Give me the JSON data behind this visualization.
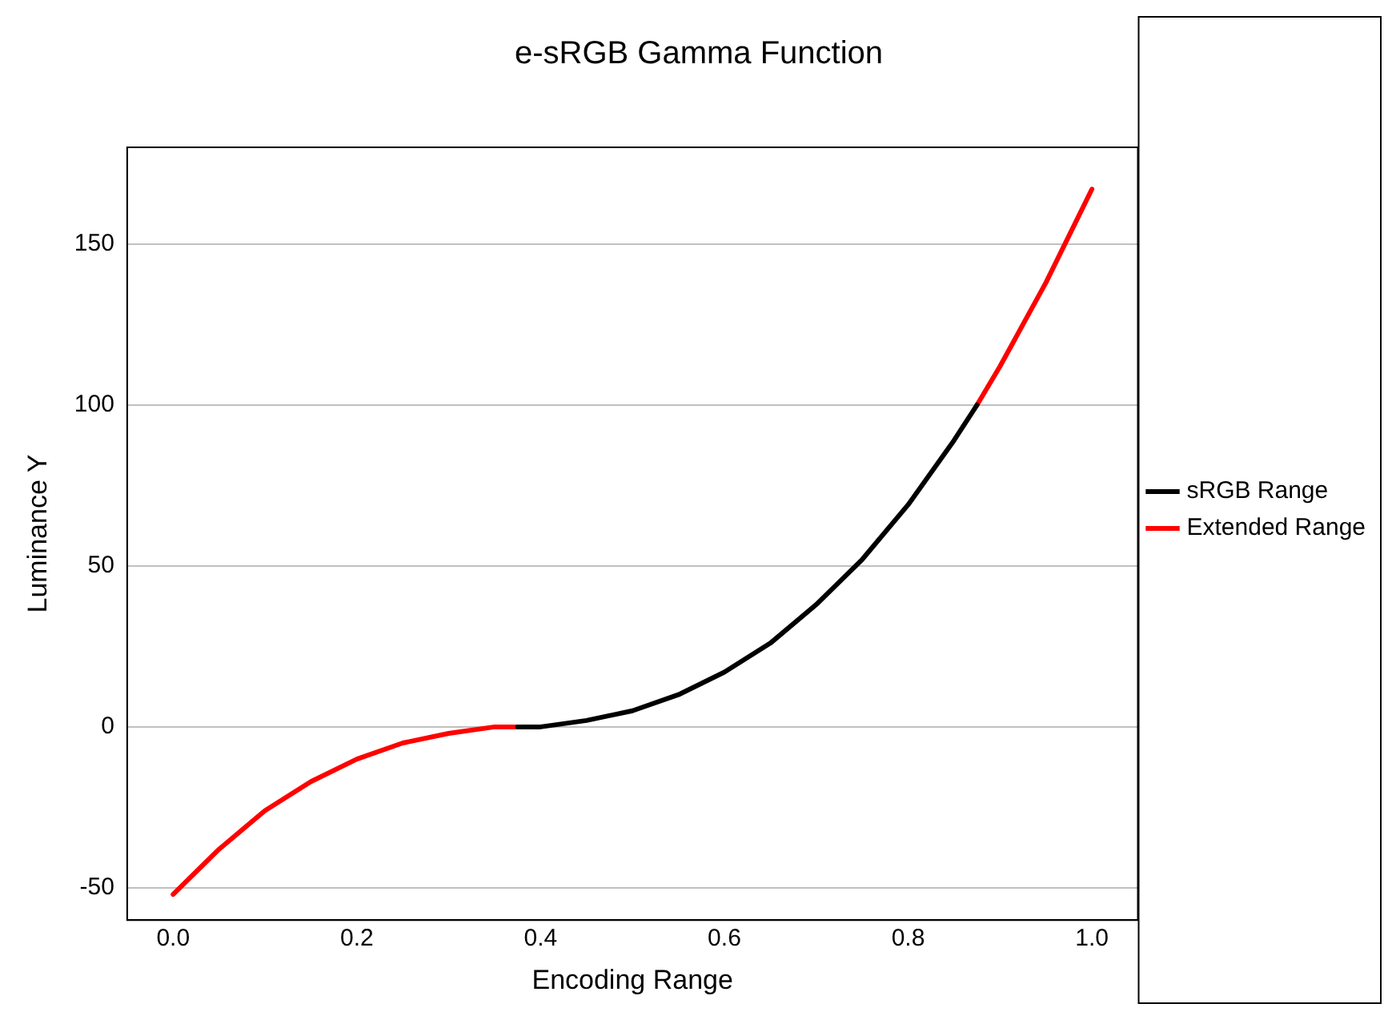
{
  "chart_data": {
    "type": "line",
    "title": "e-sRGB Gamma Function",
    "xlabel": "Encoding Range",
    "ylabel": "Luminance Y",
    "xlim": [
      -0.05,
      1.05
    ],
    "xticks": [
      {
        "value": 0,
        "label": "0.0"
      },
      {
        "value": 0.2,
        "label": "0.2"
      },
      {
        "value": 0.4,
        "label": "0.4"
      },
      {
        "value": 0.6,
        "label": "0.6"
      },
      {
        "value": 0.8,
        "label": "0.8"
      },
      {
        "value": 1,
        "label": "1.0"
      }
    ],
    "ylim": [
      -60,
      180
    ],
    "yticks": [
      -50,
      0,
      50,
      100,
      150
    ],
    "grid": "y",
    "legend": "right",
    "marker": "none",
    "line_style": "solid",
    "series": [
      {
        "name": "sRGB Range",
        "color": "#000000",
        "x": [
          0.375,
          0.4,
          0.45,
          0.5,
          0.55,
          0.6,
          0.65,
          0.7,
          0.75,
          0.8,
          0.85,
          0.875
        ],
        "values": [
          0,
          0,
          2,
          5,
          10,
          17,
          26,
          38,
          52,
          69,
          89,
          100
        ]
      },
      {
        "name": "Extended Range",
        "color": "#ff0000",
        "x": [
          0,
          0.05,
          0.1,
          0.15,
          0.2,
          0.25,
          0.3,
          0.35,
          0.375,
          0.6,
          0.875,
          0.9,
          0.95,
          1
        ],
        "values": [
          -52,
          -38,
          -26,
          -17,
          -10,
          -5,
          -2,
          0,
          0,
          null,
          100,
          112,
          138,
          167
        ]
      }
    ]
  }
}
